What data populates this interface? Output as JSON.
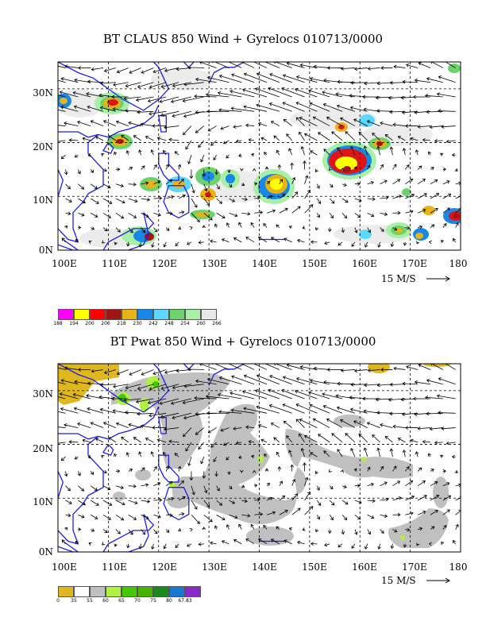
{
  "colors": {
    "coast": "#1e1ee6",
    "grid": "#000000",
    "arrow": "#000000",
    "claus_fill": [
      "#f0f0f0",
      "#a8f0a8",
      "#6cd36c",
      "#5ad8ff",
      "#1888e8",
      "#e6b414",
      "#a01414",
      "#e01414",
      "#ffff00",
      "#ff00ff"
    ],
    "pwat_fill": [
      "#e0b81e",
      "#c0c0c0",
      "#b0f040",
      "#44c800"
    ]
  },
  "panel1": {
    "title": "BT CLAUS 850 Wind + Gyrelocs 010713/0000",
    "lon_labels": [
      "100E",
      "110E",
      "120E",
      "130E",
      "140E",
      "150E",
      "160E",
      "170E",
      "180"
    ],
    "lat_labels": [
      "0N",
      "10N",
      "20N",
      "30N"
    ],
    "ref_vector": "15 M/S"
  },
  "legend1": {
    "colors": [
      "#ff00ff",
      "#ffff00",
      "#ff0000",
      "#a01414",
      "#e6b414",
      "#1888e8",
      "#5ad8ff",
      "#6cd36c",
      "#a8f0a8",
      "#e8e8e8"
    ],
    "labels": [
      "188",
      "194",
      "200",
      "206",
      "218",
      "230",
      "242",
      "248",
      "254",
      "260",
      "266"
    ]
  },
  "panel2": {
    "title": "BT Pwat 850 Wind + Gyrelocs 010713/0000",
    "lon_labels": [
      "100E",
      "110E",
      "120E",
      "130E",
      "140E",
      "150E",
      "160E",
      "170E",
      "180"
    ],
    "lat_labels": [
      "0N",
      "10N",
      "20N",
      "30N"
    ],
    "ref_vector": "15 M/S"
  },
  "legend2": {
    "colors": [
      "#e0b81e",
      "#ffffff",
      "#c0c0c0",
      "#b0f040",
      "#44c800",
      "#44b400",
      "#1a8a1a",
      "#1a78d0",
      "#8a28c8"
    ],
    "labels": [
      "0",
      "35",
      "55",
      "60",
      "65",
      "70",
      "75",
      "80",
      "67.83"
    ]
  }
}
